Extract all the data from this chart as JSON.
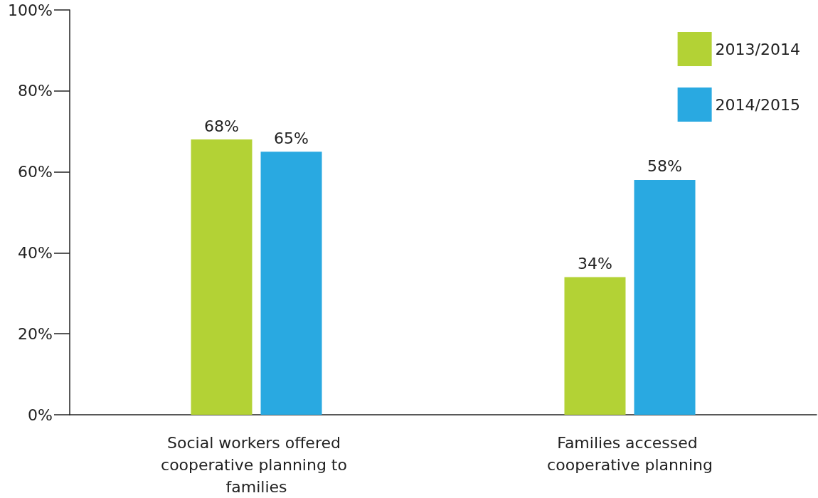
{
  "chart_data": {
    "type": "bar",
    "categories": [
      "Social workers offered cooperative planning to families",
      "Families accessed cooperative planning"
    ],
    "series": [
      {
        "name": "2013/2014",
        "color": "#b3d235",
        "values": [
          68,
          34
        ],
        "value_labels": [
          "68%",
          "34%"
        ]
      },
      {
        "name": "2014/2015",
        "color": "#29a9e1",
        "values": [
          65,
          58
        ],
        "value_labels": [
          "65%",
          "58%"
        ]
      }
    ],
    "ylim": [
      0,
      100
    ],
    "yticks": [
      {
        "value": 0,
        "label": "0%"
      },
      {
        "value": 20,
        "label": "20%"
      },
      {
        "value": 40,
        "label": "40%"
      },
      {
        "value": 60,
        "label": "60%"
      },
      {
        "value": 80,
        "label": "80%"
      },
      {
        "value": 100,
        "label": "100%"
      }
    ],
    "grid": false,
    "legend": "top right"
  }
}
